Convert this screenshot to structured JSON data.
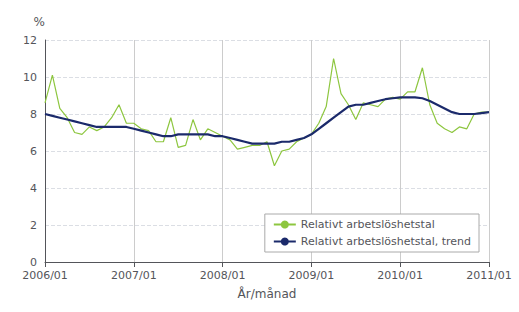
{
  "chart_data": {
    "type": "line",
    "xlabel": "År/månad",
    "ylabel": "%",
    "categories": [
      "2006/01",
      null,
      null,
      null,
      null,
      null,
      null,
      null,
      null,
      null,
      null,
      null,
      "2007/01",
      null,
      null,
      null,
      null,
      null,
      null,
      null,
      null,
      null,
      null,
      null,
      "2008/01",
      null,
      null,
      null,
      null,
      null,
      null,
      null,
      null,
      null,
      null,
      null,
      "2009/01",
      null,
      null,
      null,
      null,
      null,
      null,
      null,
      null,
      null,
      null,
      null,
      "2010/01",
      null,
      null,
      null,
      null,
      null,
      null,
      null,
      null,
      null,
      null,
      null,
      "2011/01"
    ],
    "series": [
      {
        "name": "Relativt arbetslöshetstal",
        "color": "#8dc63f",
        "values": [
          8.6,
          10.1,
          8.3,
          7.8,
          7.0,
          6.9,
          7.3,
          7.1,
          7.3,
          7.8,
          8.5,
          7.5,
          7.5,
          7.2,
          7.1,
          6.5,
          6.5,
          7.8,
          6.2,
          6.3,
          7.7,
          6.6,
          7.2,
          7.0,
          6.8,
          6.6,
          6.1,
          6.2,
          6.3,
          6.3,
          6.5,
          5.2,
          6.0,
          6.1,
          6.5,
          6.7,
          6.9,
          7.5,
          8.4,
          11.0,
          9.1,
          8.5,
          7.7,
          8.6,
          8.5,
          8.4,
          8.8,
          8.9,
          8.8,
          9.2,
          9.2,
          10.5,
          8.5,
          7.5,
          7.2,
          7.0,
          7.3,
          7.2,
          8.0,
          8.1,
          8.1
        ]
      },
      {
        "name": "Relativt arbetslöshetstal, trend",
        "color": "#1b2a6b",
        "values": [
          8.0,
          7.9,
          7.8,
          7.7,
          7.6,
          7.5,
          7.4,
          7.3,
          7.3,
          7.3,
          7.3,
          7.3,
          7.2,
          7.1,
          7.0,
          6.9,
          6.8,
          6.8,
          6.9,
          6.9,
          6.9,
          6.9,
          6.9,
          6.8,
          6.8,
          6.7,
          6.6,
          6.5,
          6.4,
          6.4,
          6.4,
          6.4,
          6.5,
          6.5,
          6.6,
          6.7,
          6.9,
          7.2,
          7.5,
          7.8,
          8.1,
          8.4,
          8.5,
          8.5,
          8.6,
          8.7,
          8.8,
          8.85,
          8.9,
          8.9,
          8.9,
          8.85,
          8.7,
          8.5,
          8.3,
          8.1,
          8.0,
          8.0,
          8.0,
          8.05,
          8.1
        ]
      }
    ],
    "ylim": [
      0,
      12
    ],
    "yticks": [
      0,
      2,
      4,
      6,
      8,
      10,
      12
    ],
    "grid": true,
    "legend": "lower right"
  }
}
